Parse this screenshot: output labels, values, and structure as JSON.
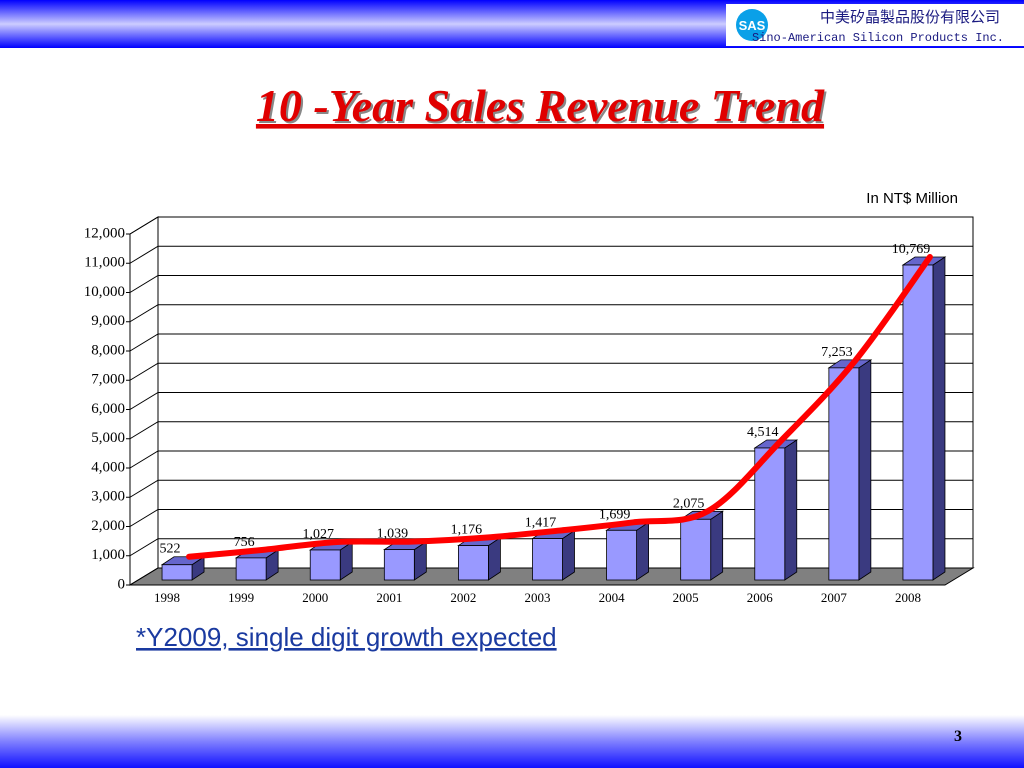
{
  "header": {
    "logo": "SAS",
    "company_cn": "中美矽晶製品股份有限公司",
    "company_en": "Sino-American Silicon Products Inc."
  },
  "chart_data": {
    "type": "bar",
    "title": "10 -Year Sales Revenue Trend",
    "unit_label": "In NT$ Million",
    "categories": [
      "1998",
      "1999",
      "2000",
      "2001",
      "2002",
      "2003",
      "2004",
      "2005",
      "2006",
      "2007",
      "2008"
    ],
    "values": [
      522,
      756,
      1027,
      1039,
      1176,
      1417,
      1699,
      2075,
      4514,
      7253,
      10769
    ],
    "value_labels": [
      "522",
      "756",
      "1,027",
      "1,039",
      "1,176",
      "1,417",
      "1,699",
      "2,075",
      "4,514",
      "7,253",
      "10,769"
    ],
    "color": "#9999ff",
    "trend_color": "#ff0000",
    "ylim": [
      0,
      12000
    ],
    "yticks": [
      0,
      {
        "value": 1000,
        "label": "1,000"
      },
      {
        "value": 2000,
        "label": "2,000"
      },
      {
        "value": 3000,
        "label": "3,000"
      },
      {
        "value": 4000,
        "label": "4,000"
      },
      {
        "value": 5000,
        "label": "5,000"
      },
      {
        "value": 6000,
        "label": "6,000"
      },
      {
        "value": 7000,
        "label": "7,000"
      },
      {
        "value": 8000,
        "label": "8,000"
      },
      {
        "value": 9000,
        "label": "9,000"
      },
      {
        "value": 10000,
        "label": "10,000"
      },
      {
        "value": 11000,
        "label": "11,000"
      },
      {
        "value": 12000,
        "label": "12,000"
      }
    ],
    "grid": true
  },
  "note": "*Y2009, single digit growth expected",
  "page_number": "3"
}
